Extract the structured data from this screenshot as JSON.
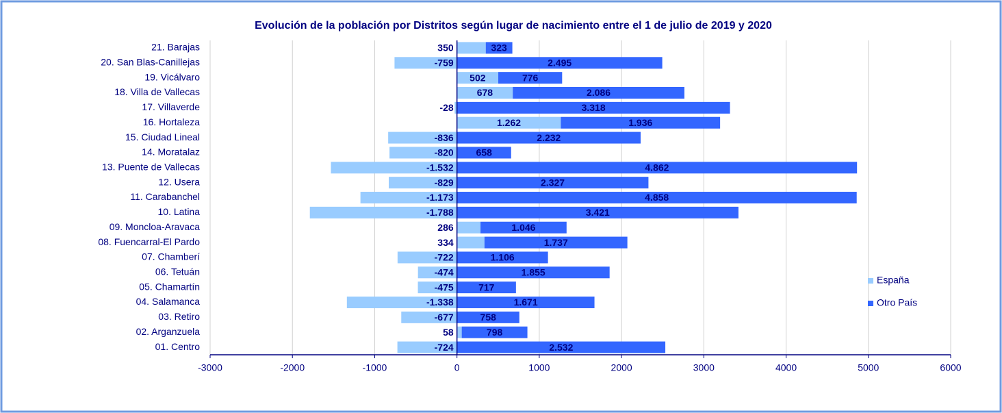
{
  "chart_data": {
    "type": "bar",
    "orientation": "horizontal",
    "stacked": true,
    "title": "Evolución de la población por Distritos según lugar de nacimiento entre el 1 de julio de 2019 y 2020",
    "categories": [
      "21. Barajas",
      "20. San Blas-Canillejas",
      "19. Vicálvaro",
      "18. Villa de Vallecas",
      "17. Villaverde",
      "16. Hortaleza",
      "15. Ciudad Lineal",
      "14. Moratalaz",
      "13.  Puente de Vallecas",
      "12. Usera",
      "11. Carabanchel",
      "10. Latina",
      "09. Moncloa-Aravaca",
      "08. Fuencarral-El Pardo",
      "07. Chamberí",
      "06. Tetuán",
      "05. Chamartín",
      "04. Salamanca",
      "03. Retiro",
      "02. Arganzuela",
      "01. Centro"
    ],
    "series": [
      {
        "name": "España",
        "color": "#99ccff",
        "values": [
          350,
          -759,
          502,
          678,
          -28,
          1262,
          -836,
          -820,
          -1532,
          -829,
          -1173,
          -1788,
          286,
          334,
          -722,
          -474,
          -475,
          -1338,
          -677,
          58,
          -724
        ],
        "value_labels": [
          "350",
          "-759",
          "502",
          "678",
          "-28",
          "1.262",
          "-836",
          "-820",
          "-1.532",
          "-829",
          "-1.173",
          "-1.788",
          "286",
          "334",
          "-722",
          "-474",
          "-475",
          "-1.338",
          "-677",
          "58",
          "-724"
        ]
      },
      {
        "name": "Otro País",
        "color": "#3366ff",
        "values": [
          323,
          2495,
          776,
          2086,
          3318,
          1936,
          2232,
          658,
          4862,
          2327,
          4858,
          3421,
          1046,
          1737,
          1106,
          1855,
          717,
          1671,
          758,
          798,
          2532
        ],
        "value_labels": [
          "323",
          "2.495",
          "776",
          "2.086",
          "3.318",
          "1.936",
          "2.232",
          "658",
          "4.862",
          "2.327",
          "4.858",
          "3.421",
          "1.046",
          "1.737",
          "1.106",
          "1.855",
          "717",
          "1.671",
          "758",
          "798",
          "2.532"
        ]
      }
    ],
    "xlim": [
      -3000,
      6000
    ],
    "xticks": [
      -3000,
      -2000,
      -1000,
      0,
      1000,
      2000,
      3000,
      4000,
      5000,
      6000
    ],
    "grid": true,
    "legend": "right"
  }
}
